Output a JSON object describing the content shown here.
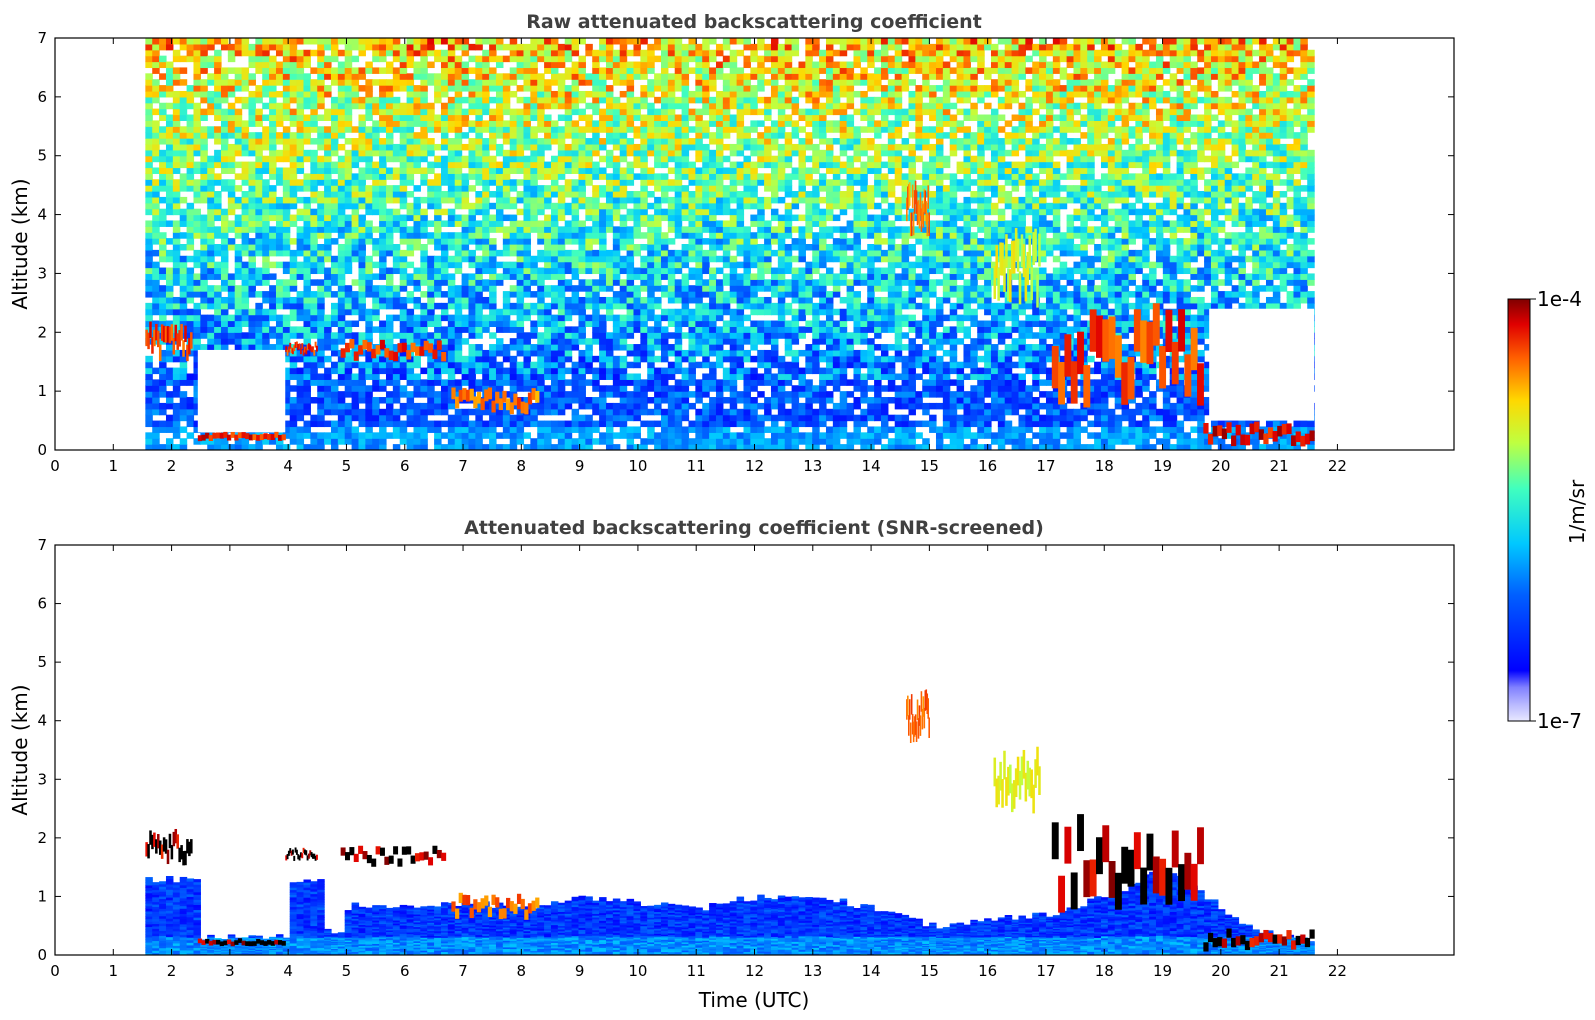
{
  "chart_data": [
    {
      "type": "heatmap",
      "title": "Raw attenuated backscattering coefficient",
      "xlabel": "",
      "ylabel": "Altitude (km)",
      "xlim": [
        0,
        24
      ],
      "ylim": [
        0,
        7
      ],
      "xticks": [
        0,
        1,
        2,
        3,
        4,
        5,
        6,
        7,
        8,
        9,
        10,
        11,
        12,
        13,
        14,
        15,
        16,
        17,
        18,
        19,
        20,
        21,
        22
      ],
      "yticks": [
        0,
        1,
        2,
        3,
        4,
        5,
        6,
        7
      ],
      "data_time_range": [
        1.55,
        21.6
      ],
      "cloud_layers": [
        {
          "t": [
            1.55,
            2.35
          ],
          "alt": [
            1.5,
            2.2
          ],
          "level": 0.95
        },
        {
          "t": [
            2.45,
            3.95
          ],
          "alt": [
            0.15,
            0.25
          ],
          "level": 0.97
        },
        {
          "t": [
            3.95,
            4.5
          ],
          "alt": [
            1.6,
            1.85
          ],
          "level": 0.95
        },
        {
          "t": [
            4.9,
            6.7
          ],
          "alt": [
            1.5,
            1.9
          ],
          "level": 0.95
        },
        {
          "t": [
            6.8,
            8.3
          ],
          "alt": [
            0.6,
            1.1
          ],
          "level": 0.9
        },
        {
          "t": [
            14.6,
            15.0
          ],
          "alt": [
            3.6,
            4.6
          ],
          "level": 0.9
        },
        {
          "t": [
            16.1,
            16.9
          ],
          "alt": [
            2.4,
            3.8
          ],
          "level": 0.75
        },
        {
          "t": [
            17.1,
            19.7
          ],
          "alt": [
            0.7,
            2.5
          ],
          "level": 0.95
        },
        {
          "t": [
            19.7,
            21.6
          ],
          "alt": [
            0.05,
            0.5
          ],
          "level": 1.0
        }
      ]
    },
    {
      "type": "heatmap",
      "title": "Attenuated backscattering coefficient (SNR-screened)",
      "xlabel": "Time (UTC)",
      "ylabel": "Altitude (km)",
      "xlim": [
        0,
        24
      ],
      "ylim": [
        0,
        7
      ],
      "xticks": [
        0,
        1,
        2,
        3,
        4,
        5,
        6,
        7,
        8,
        9,
        10,
        11,
        12,
        13,
        14,
        15,
        16,
        17,
        18,
        19,
        20,
        21,
        22
      ],
      "yticks": [
        0,
        1,
        2,
        3,
        4,
        5,
        6,
        7
      ],
      "data_time_range": [
        1.55,
        21.6
      ],
      "boundary_layer_top_km": [
        [
          1.55,
          1.3
        ],
        [
          2.4,
          1.3
        ],
        [
          2.45,
          0.3
        ],
        [
          3.95,
          0.3
        ],
        [
          4.0,
          1.3
        ],
        [
          4.5,
          1.3
        ],
        [
          4.55,
          0.4
        ],
        [
          4.9,
          0.4
        ],
        [
          5.0,
          0.9
        ],
        [
          6.0,
          0.8
        ],
        [
          7.0,
          0.9
        ],
        [
          8.0,
          0.8
        ],
        [
          9.0,
          1.0
        ],
        [
          10.0,
          0.9
        ],
        [
          11.0,
          0.8
        ],
        [
          12.0,
          1.0
        ],
        [
          13.0,
          1.0
        ],
        [
          14.0,
          0.8
        ],
        [
          15.0,
          0.5
        ],
        [
          16.0,
          0.6
        ],
        [
          17.0,
          0.7
        ],
        [
          18.0,
          1.0
        ],
        [
          19.0,
          1.5
        ],
        [
          19.7,
          1.0
        ],
        [
          20.5,
          0.4
        ],
        [
          21.6,
          0.25
        ]
      ]
    }
  ],
  "colorbar": {
    "label": "1/m/sr",
    "min_label": "1e-7",
    "max_label": "1e-4",
    "scale": "log",
    "colormap": "jet"
  },
  "colors": {
    "title": "#404040",
    "axes": "#000000",
    "background": "#ffffff"
  }
}
